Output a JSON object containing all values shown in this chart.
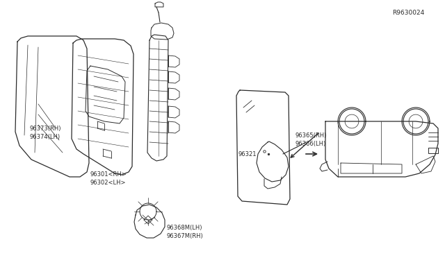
{
  "bg_color": "#ffffff",
  "line_color": "#2a2a2a",
  "text_color": "#2a2a2a",
  "ref_code": "R9630024",
  "labels": {
    "96367M_RH": "96367M(RH)",
    "96368M_LH": "96368M(LH)",
    "96365_RH": "96365(RH)",
    "96366_LH": "96366(LH)",
    "96373_RH": "96373(RH)",
    "96374_LH": "96374(LH)",
    "96301_RH": "96301<RH>",
    "96302_LH": "96302<LH>",
    "96321": "96321"
  },
  "font_size": 6.0,
  "ref_font_size": 6.5
}
